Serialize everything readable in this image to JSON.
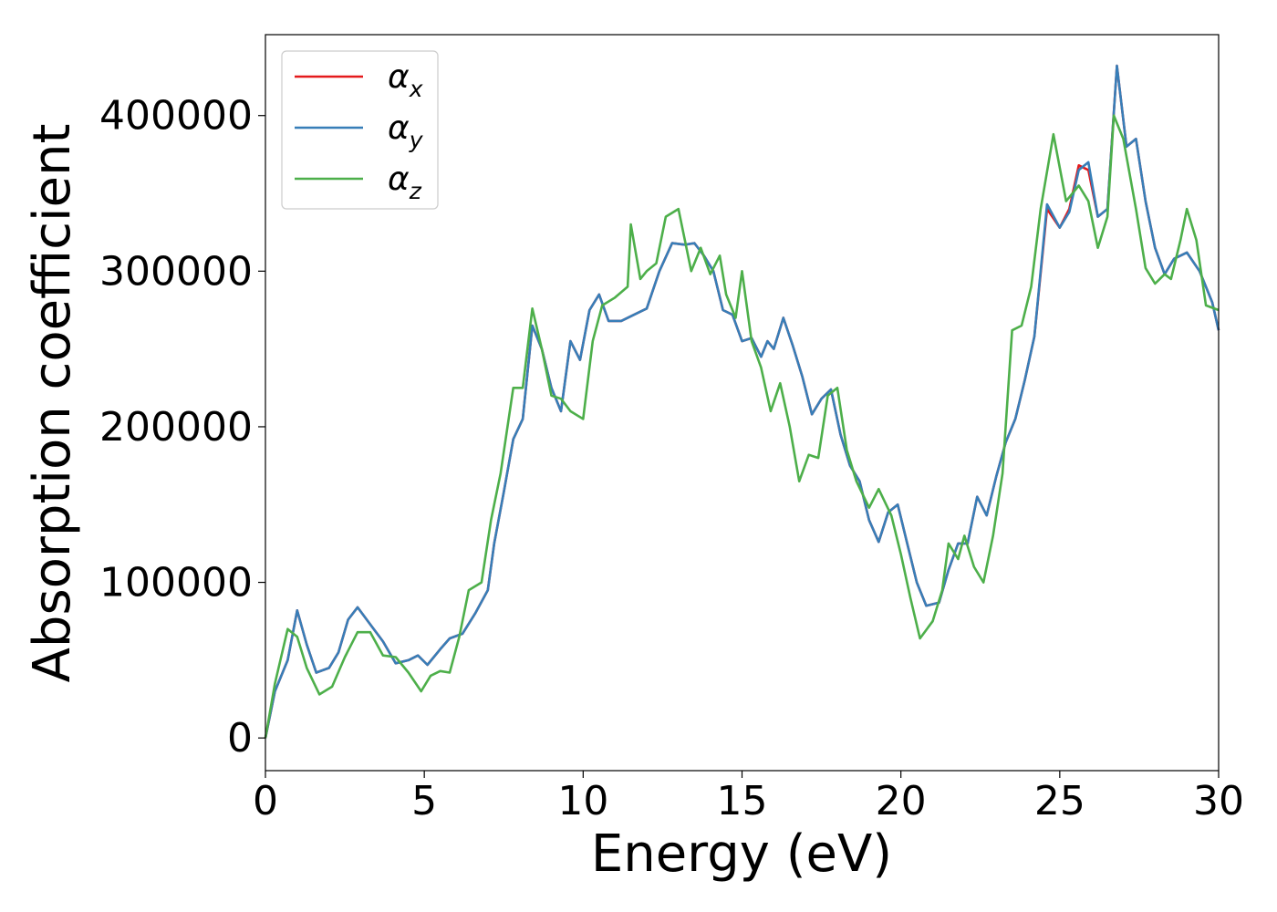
{
  "chart_data": {
    "type": "line",
    "xlabel": "Energy (eV)",
    "ylabel": "Absorption coefficient",
    "xlim": [
      0,
      30
    ],
    "ylim": [
      -21000,
      452000
    ],
    "x_ticks": [
      0,
      5,
      10,
      15,
      20,
      25,
      30
    ],
    "x_tick_labels": [
      "0",
      "5",
      "10",
      "15",
      "20",
      "25",
      "30"
    ],
    "y_ticks": [
      0,
      100000,
      200000,
      300000,
      400000
    ],
    "y_tick_labels": [
      "0",
      "100000",
      "200000",
      "300000",
      "400000"
    ],
    "grid": false,
    "legend_position": "top-left",
    "series": [
      {
        "name": "α_x",
        "legend_main": "α",
        "legend_sub": "x",
        "color": "#e41a1c",
        "points": [
          [
            0,
            0
          ],
          [
            0.3,
            30000
          ],
          [
            0.7,
            50000
          ],
          [
            1.0,
            82000
          ],
          [
            1.3,
            60000
          ],
          [
            1.6,
            42000
          ],
          [
            2.0,
            45000
          ],
          [
            2.3,
            55000
          ],
          [
            2.6,
            76000
          ],
          [
            2.9,
            84000
          ],
          [
            3.3,
            73000
          ],
          [
            3.7,
            62000
          ],
          [
            4.1,
            48000
          ],
          [
            4.5,
            50000
          ],
          [
            4.8,
            53000
          ],
          [
            5.1,
            47000
          ],
          [
            5.5,
            57000
          ],
          [
            5.8,
            64000
          ],
          [
            6.2,
            67000
          ],
          [
            6.6,
            80000
          ],
          [
            7.0,
            95000
          ],
          [
            7.2,
            125000
          ],
          [
            7.5,
            158000
          ],
          [
            7.8,
            192000
          ],
          [
            8.1,
            205000
          ],
          [
            8.4,
            265000
          ],
          [
            8.7,
            250000
          ],
          [
            9.0,
            225000
          ],
          [
            9.3,
            210000
          ],
          [
            9.6,
            255000
          ],
          [
            9.9,
            243000
          ],
          [
            10.2,
            275000
          ],
          [
            10.5,
            285000
          ],
          [
            10.8,
            268000
          ],
          [
            11.2,
            268000
          ],
          [
            11.6,
            272000
          ],
          [
            12.0,
            276000
          ],
          [
            12.4,
            300000
          ],
          [
            12.8,
            318000
          ],
          [
            13.2,
            317000
          ],
          [
            13.5,
            318000
          ],
          [
            13.8,
            310000
          ],
          [
            14.1,
            300000
          ],
          [
            14.4,
            275000
          ],
          [
            14.7,
            272000
          ],
          [
            15.0,
            255000
          ],
          [
            15.3,
            257000
          ],
          [
            15.6,
            245000
          ],
          [
            15.8,
            255000
          ],
          [
            16.0,
            250000
          ],
          [
            16.3,
            270000
          ],
          [
            16.6,
            252000
          ],
          [
            16.9,
            232000
          ],
          [
            17.2,
            208000
          ],
          [
            17.5,
            218000
          ],
          [
            17.8,
            224000
          ],
          [
            18.1,
            195000
          ],
          [
            18.4,
            175000
          ],
          [
            18.7,
            165000
          ],
          [
            19.0,
            140000
          ],
          [
            19.3,
            126000
          ],
          [
            19.6,
            145000
          ],
          [
            19.9,
            150000
          ],
          [
            20.2,
            125000
          ],
          [
            20.5,
            100000
          ],
          [
            20.8,
            85000
          ],
          [
            21.2,
            87000
          ],
          [
            21.5,
            108000
          ],
          [
            21.8,
            125000
          ],
          [
            22.1,
            125000
          ],
          [
            22.4,
            155000
          ],
          [
            22.7,
            143000
          ],
          [
            23.0,
            168000
          ],
          [
            23.3,
            190000
          ],
          [
            23.6,
            205000
          ],
          [
            23.9,
            230000
          ],
          [
            24.2,
            258000
          ],
          [
            24.6,
            340000
          ],
          [
            25.0,
            328000
          ],
          [
            25.3,
            340000
          ],
          [
            25.6,
            368000
          ],
          [
            25.9,
            365000
          ],
          [
            26.2,
            335000
          ],
          [
            26.5,
            340000
          ],
          [
            26.8,
            432000
          ],
          [
            27.1,
            380000
          ],
          [
            27.4,
            385000
          ],
          [
            27.7,
            345000
          ],
          [
            28.0,
            315000
          ],
          [
            28.3,
            298000
          ],
          [
            28.6,
            308000
          ],
          [
            29.0,
            312000
          ],
          [
            29.4,
            300000
          ],
          [
            29.8,
            280000
          ],
          [
            30.0,
            262000
          ]
        ]
      },
      {
        "name": "α_y",
        "legend_main": "α",
        "legend_sub": "y",
        "color": "#377eb8",
        "points": [
          [
            0,
            0
          ],
          [
            0.3,
            30000
          ],
          [
            0.7,
            50000
          ],
          [
            1.0,
            82000
          ],
          [
            1.3,
            60000
          ],
          [
            1.6,
            42000
          ],
          [
            2.0,
            45000
          ],
          [
            2.3,
            55000
          ],
          [
            2.6,
            76000
          ],
          [
            2.9,
            84000
          ],
          [
            3.3,
            73000
          ],
          [
            3.7,
            62000
          ],
          [
            4.1,
            48000
          ],
          [
            4.5,
            50000
          ],
          [
            4.8,
            53000
          ],
          [
            5.1,
            47000
          ],
          [
            5.5,
            57000
          ],
          [
            5.8,
            64000
          ],
          [
            6.2,
            67000
          ],
          [
            6.6,
            80000
          ],
          [
            7.0,
            95000
          ],
          [
            7.2,
            125000
          ],
          [
            7.5,
            158000
          ],
          [
            7.8,
            192000
          ],
          [
            8.1,
            205000
          ],
          [
            8.4,
            265000
          ],
          [
            8.7,
            250000
          ],
          [
            9.0,
            225000
          ],
          [
            9.3,
            210000
          ],
          [
            9.6,
            255000
          ],
          [
            9.9,
            243000
          ],
          [
            10.2,
            275000
          ],
          [
            10.5,
            285000
          ],
          [
            10.8,
            268000
          ],
          [
            11.2,
            268000
          ],
          [
            11.6,
            272000
          ],
          [
            12.0,
            276000
          ],
          [
            12.4,
            300000
          ],
          [
            12.8,
            318000
          ],
          [
            13.2,
            317000
          ],
          [
            13.5,
            318000
          ],
          [
            13.8,
            310000
          ],
          [
            14.1,
            300000
          ],
          [
            14.4,
            275000
          ],
          [
            14.7,
            272000
          ],
          [
            15.0,
            255000
          ],
          [
            15.3,
            257000
          ],
          [
            15.6,
            245000
          ],
          [
            15.8,
            255000
          ],
          [
            16.0,
            250000
          ],
          [
            16.3,
            270000
          ],
          [
            16.6,
            252000
          ],
          [
            16.9,
            232000
          ],
          [
            17.2,
            208000
          ],
          [
            17.5,
            218000
          ],
          [
            17.8,
            224000
          ],
          [
            18.1,
            195000
          ],
          [
            18.4,
            175000
          ],
          [
            18.7,
            165000
          ],
          [
            19.0,
            140000
          ],
          [
            19.3,
            126000
          ],
          [
            19.6,
            145000
          ],
          [
            19.9,
            150000
          ],
          [
            20.2,
            125000
          ],
          [
            20.5,
            100000
          ],
          [
            20.8,
            85000
          ],
          [
            21.2,
            87000
          ],
          [
            21.5,
            108000
          ],
          [
            21.8,
            125000
          ],
          [
            22.1,
            125000
          ],
          [
            22.4,
            155000
          ],
          [
            22.7,
            143000
          ],
          [
            23.0,
            168000
          ],
          [
            23.3,
            190000
          ],
          [
            23.6,
            205000
          ],
          [
            23.9,
            230000
          ],
          [
            24.2,
            258000
          ],
          [
            24.6,
            343000
          ],
          [
            25.0,
            328000
          ],
          [
            25.3,
            338000
          ],
          [
            25.6,
            365000
          ],
          [
            25.9,
            370000
          ],
          [
            26.2,
            335000
          ],
          [
            26.5,
            340000
          ],
          [
            26.8,
            432000
          ],
          [
            27.1,
            380000
          ],
          [
            27.4,
            385000
          ],
          [
            27.7,
            345000
          ],
          [
            28.0,
            315000
          ],
          [
            28.3,
            298000
          ],
          [
            28.6,
            308000
          ],
          [
            29.0,
            312000
          ],
          [
            29.4,
            300000
          ],
          [
            29.8,
            280000
          ],
          [
            30.0,
            262000
          ]
        ]
      },
      {
        "name": "α_z",
        "legend_main": "α",
        "legend_sub": "z",
        "color": "#4daf4a",
        "points": [
          [
            0,
            0
          ],
          [
            0.3,
            35000
          ],
          [
            0.7,
            70000
          ],
          [
            1.0,
            65000
          ],
          [
            1.3,
            45000
          ],
          [
            1.7,
            28000
          ],
          [
            2.1,
            33000
          ],
          [
            2.5,
            52000
          ],
          [
            2.9,
            68000
          ],
          [
            3.3,
            68000
          ],
          [
            3.7,
            53000
          ],
          [
            4.1,
            52000
          ],
          [
            4.5,
            42000
          ],
          [
            4.9,
            30000
          ],
          [
            5.2,
            40000
          ],
          [
            5.5,
            43000
          ],
          [
            5.8,
            42000
          ],
          [
            6.1,
            65000
          ],
          [
            6.4,
            95000
          ],
          [
            6.8,
            100000
          ],
          [
            7.1,
            140000
          ],
          [
            7.4,
            170000
          ],
          [
            7.8,
            225000
          ],
          [
            8.1,
            225000
          ],
          [
            8.4,
            276000
          ],
          [
            8.7,
            250000
          ],
          [
            9.0,
            220000
          ],
          [
            9.3,
            218000
          ],
          [
            9.6,
            210000
          ],
          [
            10.0,
            205000
          ],
          [
            10.3,
            255000
          ],
          [
            10.6,
            278000
          ],
          [
            11.0,
            283000
          ],
          [
            11.4,
            290000
          ],
          [
            11.5,
            330000
          ],
          [
            11.8,
            295000
          ],
          [
            12.0,
            300000
          ],
          [
            12.3,
            305000
          ],
          [
            12.6,
            335000
          ],
          [
            13.0,
            340000
          ],
          [
            13.4,
            300000
          ],
          [
            13.7,
            315000
          ],
          [
            14.0,
            298000
          ],
          [
            14.3,
            310000
          ],
          [
            14.5,
            285000
          ],
          [
            14.8,
            270000
          ],
          [
            15.0,
            300000
          ],
          [
            15.3,
            255000
          ],
          [
            15.6,
            238000
          ],
          [
            15.9,
            210000
          ],
          [
            16.2,
            228000
          ],
          [
            16.5,
            200000
          ],
          [
            16.8,
            165000
          ],
          [
            17.1,
            182000
          ],
          [
            17.4,
            180000
          ],
          [
            17.7,
            220000
          ],
          [
            18.0,
            225000
          ],
          [
            18.3,
            185000
          ],
          [
            18.6,
            165000
          ],
          [
            19.0,
            148000
          ],
          [
            19.3,
            160000
          ],
          [
            19.7,
            143000
          ],
          [
            20.0,
            118000
          ],
          [
            20.3,
            90000
          ],
          [
            20.6,
            64000
          ],
          [
            21.0,
            75000
          ],
          [
            21.3,
            95000
          ],
          [
            21.5,
            125000
          ],
          [
            21.8,
            115000
          ],
          [
            22.0,
            130000
          ],
          [
            22.3,
            110000
          ],
          [
            22.6,
            100000
          ],
          [
            22.9,
            130000
          ],
          [
            23.2,
            170000
          ],
          [
            23.5,
            262000
          ],
          [
            23.8,
            265000
          ],
          [
            24.1,
            290000
          ],
          [
            24.4,
            340000
          ],
          [
            24.8,
            388000
          ],
          [
            25.2,
            345000
          ],
          [
            25.6,
            355000
          ],
          [
            25.9,
            345000
          ],
          [
            26.2,
            315000
          ],
          [
            26.5,
            335000
          ],
          [
            26.7,
            400000
          ],
          [
            27.0,
            385000
          ],
          [
            27.4,
            340000
          ],
          [
            27.7,
            302000
          ],
          [
            28.0,
            292000
          ],
          [
            28.3,
            298000
          ],
          [
            28.5,
            295000
          ],
          [
            28.8,
            320000
          ],
          [
            29.0,
            340000
          ],
          [
            29.3,
            320000
          ],
          [
            29.6,
            278000
          ],
          [
            30.0,
            275000
          ]
        ]
      }
    ]
  }
}
